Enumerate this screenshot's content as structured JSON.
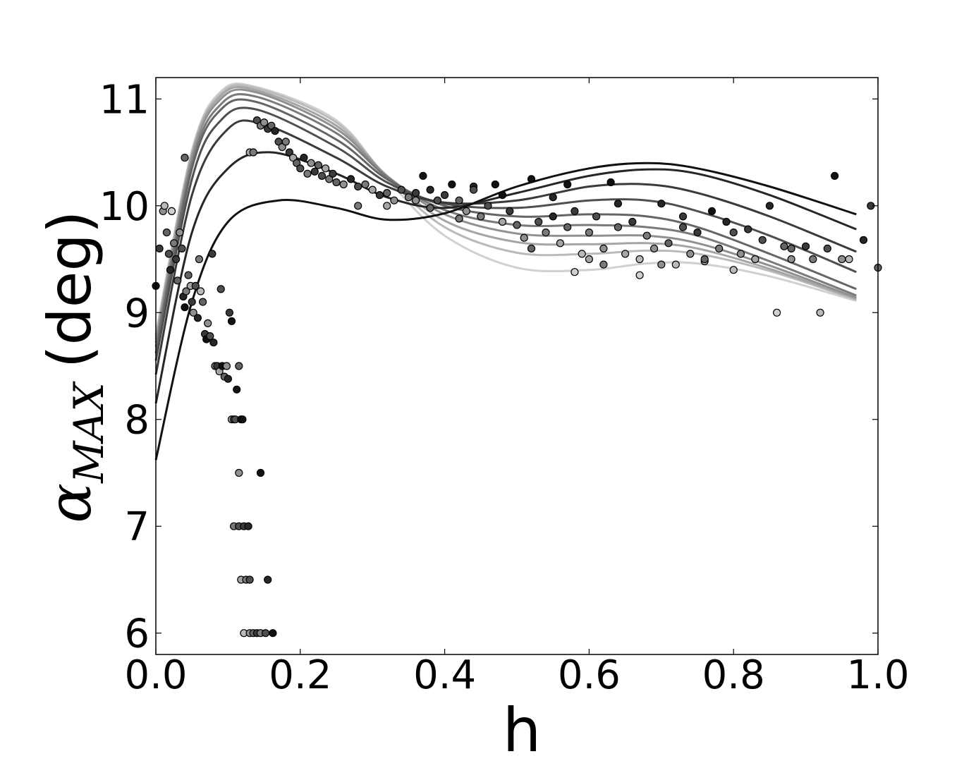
{
  "chart_data": {
    "type": "scatter",
    "title": "",
    "xlabel": "h",
    "ylabel": {
      "symbol": "α",
      "subscript": "MAX",
      "unit": "(deg)"
    },
    "xlim": [
      0.0,
      1.0
    ],
    "ylim": [
      5.8,
      11.2
    ],
    "xticks": [
      "0.0",
      "0.2",
      "0.4",
      "0.6",
      "0.8",
      "1.0"
    ],
    "xtick_values": [
      0.0,
      0.2,
      0.4,
      0.6,
      0.8,
      1.0
    ],
    "yticks": [
      "6",
      "7",
      "8",
      "9",
      "10",
      "11"
    ],
    "ytick_values": [
      6,
      7,
      8,
      9,
      10,
      11
    ],
    "grid": false,
    "legend": "none",
    "colors": [
      "#111111",
      "#262626",
      "#3a3a3a",
      "#4f4f4f",
      "#656565",
      "#7a7a7a",
      "#909090",
      "#a5a5a5",
      "#bababa",
      "#d0d0d0"
    ],
    "curves": [
      {
        "h": [
          0.0,
          0.05,
          0.1,
          0.17,
          0.25,
          0.32,
          0.4,
          0.5,
          0.6,
          0.68,
          0.75,
          0.85,
          0.97
        ],
        "alpha": [
          7.62,
          9.1,
          9.85,
          10.05,
          9.98,
          9.87,
          9.93,
          10.18,
          10.35,
          10.4,
          10.35,
          10.18,
          9.92
        ]
      },
      {
        "h": [
          0.0,
          0.05,
          0.1,
          0.16,
          0.25,
          0.32,
          0.4,
          0.5,
          0.6,
          0.68,
          0.75,
          0.85,
          0.97
        ],
        "alpha": [
          8.15,
          9.75,
          10.35,
          10.5,
          10.3,
          10.08,
          9.98,
          10.12,
          10.28,
          10.34,
          10.3,
          10.1,
          9.78
        ]
      },
      {
        "h": [
          0.0,
          0.05,
          0.1,
          0.15,
          0.25,
          0.32,
          0.4,
          0.5,
          0.6,
          0.68,
          0.75,
          0.85,
          0.97
        ],
        "alpha": [
          8.42,
          10.1,
          10.72,
          10.76,
          10.45,
          10.18,
          10.03,
          10.05,
          10.18,
          10.2,
          10.12,
          9.9,
          9.57
        ]
      },
      {
        "h": [
          0.0,
          0.05,
          0.09,
          0.14,
          0.25,
          0.32,
          0.4,
          0.5,
          0.6,
          0.68,
          0.75,
          0.85,
          0.97
        ],
        "alpha": [
          8.55,
          10.25,
          10.8,
          10.9,
          10.55,
          10.22,
          10.02,
          9.98,
          10.05,
          10.05,
          9.95,
          9.72,
          9.38
        ]
      },
      {
        "h": [
          0.0,
          0.05,
          0.09,
          0.14,
          0.25,
          0.32,
          0.4,
          0.5,
          0.6,
          0.68,
          0.75,
          0.85,
          0.97
        ],
        "alpha": [
          8.62,
          10.35,
          10.9,
          10.97,
          10.62,
          10.25,
          10.0,
          9.9,
          9.92,
          9.9,
          9.8,
          9.55,
          9.22
        ]
      },
      {
        "h": [
          0.0,
          0.05,
          0.09,
          0.14,
          0.25,
          0.32,
          0.4,
          0.5,
          0.6,
          0.68,
          0.75,
          0.85,
          0.97
        ],
        "alpha": [
          8.68,
          10.4,
          10.95,
          11.02,
          10.68,
          10.27,
          9.96,
          9.82,
          9.82,
          9.8,
          9.72,
          9.48,
          9.16
        ]
      },
      {
        "h": [
          0.0,
          0.05,
          0.09,
          0.14,
          0.25,
          0.32,
          0.4,
          0.5,
          0.6,
          0.68,
          0.75,
          0.85,
          0.97
        ],
        "alpha": [
          8.72,
          10.45,
          11.0,
          11.06,
          10.72,
          10.28,
          9.92,
          9.74,
          9.72,
          9.72,
          9.65,
          9.44,
          9.14
        ]
      },
      {
        "h": [
          0.0,
          0.05,
          0.09,
          0.14,
          0.25,
          0.32,
          0.4,
          0.5,
          0.6,
          0.68,
          0.75,
          0.85,
          0.97
        ],
        "alpha": [
          8.75,
          10.48,
          11.03,
          11.08,
          10.75,
          10.28,
          9.86,
          9.66,
          9.64,
          9.65,
          9.6,
          9.41,
          9.13
        ]
      },
      {
        "h": [
          0.0,
          0.05,
          0.09,
          0.14,
          0.25,
          0.32,
          0.4,
          0.5,
          0.6,
          0.68,
          0.75,
          0.85,
          0.97
        ],
        "alpha": [
          8.78,
          10.5,
          11.05,
          11.1,
          10.78,
          10.27,
          9.8,
          9.56,
          9.55,
          9.58,
          9.55,
          9.39,
          9.12
        ]
      },
      {
        "h": [
          0.0,
          0.05,
          0.09,
          0.14,
          0.25,
          0.32,
          0.4,
          0.5,
          0.6,
          0.68,
          0.75,
          0.85,
          0.97
        ],
        "alpha": [
          8.8,
          10.52,
          11.07,
          11.11,
          10.8,
          10.25,
          9.72,
          9.42,
          9.4,
          9.46,
          9.46,
          9.34,
          9.11
        ]
      }
    ],
    "points_gray": [
      [
        0.0,
        9.25,
        0
      ],
      [
        0.005,
        9.6,
        2
      ],
      [
        0.01,
        9.95,
        6
      ],
      [
        0.012,
        10.0,
        8
      ],
      [
        0.015,
        9.75,
        4
      ],
      [
        0.018,
        9.55,
        3
      ],
      [
        0.02,
        9.4,
        1
      ],
      [
        0.022,
        9.95,
        7
      ],
      [
        0.025,
        9.65,
        5
      ],
      [
        0.028,
        9.5,
        2
      ],
      [
        0.03,
        9.3,
        4
      ],
      [
        0.033,
        9.75,
        6
      ],
      [
        0.036,
        9.6,
        3
      ],
      [
        0.038,
        9.15,
        1
      ],
      [
        0.04,
        9.05,
        0
      ],
      [
        0.042,
        9.2,
        5
      ],
      [
        0.045,
        9.35,
        4
      ],
      [
        0.048,
        9.25,
        7
      ],
      [
        0.05,
        9.1,
        2
      ],
      [
        0.052,
        9.0,
        6
      ],
      [
        0.055,
        9.25,
        3
      ],
      [
        0.058,
        8.95,
        1
      ],
      [
        0.06,
        9.5,
        5
      ],
      [
        0.062,
        9.2,
        8
      ],
      [
        0.065,
        9.1,
        4
      ],
      [
        0.068,
        8.8,
        2
      ],
      [
        0.07,
        8.75,
        0
      ],
      [
        0.072,
        8.9,
        6
      ],
      [
        0.075,
        8.78,
        3
      ],
      [
        0.078,
        9.55,
        2
      ],
      [
        0.04,
        10.45,
        4
      ],
      [
        0.022,
        9.95,
        9
      ],
      [
        0.08,
        8.72,
        1
      ],
      [
        0.082,
        8.5,
        5
      ],
      [
        0.085,
        8.5,
        2
      ],
      [
        0.088,
        8.45,
        7
      ],
      [
        0.09,
        9.22,
        3
      ],
      [
        0.092,
        8.5,
        0
      ],
      [
        0.095,
        8.4,
        4
      ],
      [
        0.098,
        8.5,
        6
      ],
      [
        0.1,
        8.38,
        1
      ],
      [
        0.102,
        9.0,
        2
      ],
      [
        0.105,
        8.92,
        0
      ],
      [
        0.105,
        8.0,
        7
      ],
      [
        0.108,
        8.0,
        5
      ],
      [
        0.11,
        8.0,
        3
      ],
      [
        0.112,
        8.28,
        0
      ],
      [
        0.115,
        8.5,
        4
      ],
      [
        0.118,
        8.0,
        1
      ],
      [
        0.12,
        8.0,
        0
      ],
      [
        0.115,
        7.5,
        6
      ],
      [
        0.145,
        7.5,
        0
      ],
      [
        0.108,
        7.0,
        5
      ],
      [
        0.115,
        7.0,
        3
      ],
      [
        0.122,
        7.0,
        2
      ],
      [
        0.128,
        7.0,
        1
      ],
      [
        0.118,
        6.5,
        7
      ],
      [
        0.125,
        6.5,
        5
      ],
      [
        0.13,
        6.5,
        3
      ],
      [
        0.155,
        6.5,
        1
      ],
      [
        0.122,
        6.0,
        8
      ],
      [
        0.13,
        6.0,
        6
      ],
      [
        0.135,
        6.0,
        4
      ],
      [
        0.14,
        6.0,
        2
      ],
      [
        0.145,
        6.0,
        5
      ],
      [
        0.152,
        6.0,
        3
      ],
      [
        0.162,
        6.0,
        0
      ],
      [
        0.13,
        10.5,
        7
      ],
      [
        0.135,
        10.5,
        5
      ],
      [
        0.14,
        10.8,
        3
      ],
      [
        0.145,
        10.75,
        5
      ],
      [
        0.15,
        10.78,
        6
      ],
      [
        0.155,
        10.72,
        2
      ],
      [
        0.16,
        10.75,
        4
      ],
      [
        0.165,
        10.7,
        1
      ],
      [
        0.17,
        10.6,
        3
      ],
      [
        0.175,
        10.55,
        6
      ],
      [
        0.18,
        10.6,
        5
      ],
      [
        0.185,
        10.5,
        2
      ],
      [
        0.19,
        10.45,
        7
      ],
      [
        0.195,
        10.4,
        4
      ],
      [
        0.2,
        10.35,
        3
      ],
      [
        0.205,
        10.45,
        1
      ],
      [
        0.21,
        10.3,
        5
      ],
      [
        0.215,
        10.4,
        6
      ],
      [
        0.22,
        10.32,
        2
      ],
      [
        0.225,
        10.38,
        4
      ],
      [
        0.23,
        10.28,
        3
      ],
      [
        0.235,
        10.35,
        7
      ],
      [
        0.24,
        10.25,
        5
      ],
      [
        0.245,
        10.3,
        2
      ],
      [
        0.25,
        10.22,
        4
      ],
      [
        0.26,
        10.2,
        6
      ],
      [
        0.27,
        10.25,
        1
      ],
      [
        0.28,
        10.18,
        3
      ],
      [
        0.29,
        10.2,
        5
      ],
      [
        0.3,
        10.15,
        7
      ],
      [
        0.31,
        10.1,
        2
      ],
      [
        0.32,
        10.12,
        4
      ],
      [
        0.33,
        10.05,
        6
      ],
      [
        0.34,
        10.15,
        3
      ],
      [
        0.35,
        10.08,
        5
      ],
      [
        0.36,
        10.12,
        2
      ],
      [
        0.37,
        10.28,
        0
      ],
      [
        0.38,
        10.15,
        1
      ],
      [
        0.39,
        10.05,
        3
      ],
      [
        0.4,
        10.1,
        2
      ],
      [
        0.41,
        10.2,
        0
      ],
      [
        0.42,
        10.05,
        4
      ],
      [
        0.43,
        9.95,
        6
      ],
      [
        0.44,
        10.18,
        1
      ],
      [
        0.45,
        9.9,
        5
      ],
      [
        0.46,
        10.0,
        3
      ],
      [
        0.47,
        10.2,
        0
      ],
      [
        0.48,
        9.85,
        7
      ],
      [
        0.49,
        9.95,
        2
      ],
      [
        0.5,
        9.82,
        4
      ],
      [
        0.51,
        9.7,
        6
      ],
      [
        0.52,
        10.25,
        0
      ],
      [
        0.53,
        9.85,
        3
      ],
      [
        0.54,
        9.75,
        5
      ],
      [
        0.55,
        9.9,
        1
      ],
      [
        0.56,
        9.65,
        7
      ],
      [
        0.57,
        9.8,
        4
      ],
      [
        0.58,
        9.95,
        2
      ],
      [
        0.59,
        9.55,
        8
      ],
      [
        0.6,
        9.75,
        5
      ],
      [
        0.61,
        9.9,
        3
      ],
      [
        0.62,
        9.6,
        6
      ],
      [
        0.63,
        10.22,
        0
      ],
      [
        0.64,
        9.8,
        4
      ],
      [
        0.65,
        9.55,
        7
      ],
      [
        0.66,
        9.85,
        2
      ],
      [
        0.67,
        9.5,
        8
      ],
      [
        0.68,
        9.72,
        5
      ],
      [
        0.69,
        9.6,
        6
      ],
      [
        0.7,
        10.02,
        1
      ],
      [
        0.71,
        9.65,
        4
      ],
      [
        0.72,
        9.45,
        8
      ],
      [
        0.73,
        9.8,
        3
      ],
      [
        0.74,
        9.55,
        6
      ],
      [
        0.75,
        9.75,
        2
      ],
      [
        0.76,
        9.48,
        7
      ],
      [
        0.77,
        9.95,
        0
      ],
      [
        0.78,
        9.6,
        5
      ],
      [
        0.79,
        9.85,
        1
      ],
      [
        0.8,
        9.4,
        8
      ],
      [
        0.81,
        9.55,
        6
      ],
      [
        0.82,
        9.78,
        2
      ],
      [
        0.83,
        9.5,
        7
      ],
      [
        0.84,
        9.68,
        3
      ],
      [
        0.85,
        10.0,
        1
      ],
      [
        0.86,
        9.0,
        9
      ],
      [
        0.87,
        9.62,
        4
      ],
      [
        0.88,
        9.5,
        6
      ],
      [
        0.9,
        9.62,
        2
      ],
      [
        0.91,
        9.5,
        5
      ],
      [
        0.92,
        9.0,
        8
      ],
      [
        0.93,
        9.6,
        3
      ],
      [
        0.94,
        10.28,
        0
      ],
      [
        0.95,
        9.5,
        6
      ],
      [
        0.96,
        9.5,
        8
      ],
      [
        0.98,
        9.68,
        1
      ],
      [
        0.99,
        10.0,
        2
      ],
      [
        1.0,
        9.42,
        4
      ],
      [
        0.58,
        9.38,
        9
      ],
      [
        0.67,
        9.35,
        9
      ],
      [
        0.28,
        10.0,
        5
      ],
      [
        0.32,
        10.0,
        7
      ],
      [
        0.36,
        10.05,
        6
      ],
      [
        0.44,
        10.15,
        3
      ],
      [
        0.52,
        9.6,
        4
      ],
      [
        0.6,
        9.5,
        7
      ],
      [
        0.7,
        9.45,
        6
      ],
      [
        0.76,
        9.5,
        4
      ],
      [
        0.62,
        9.45,
        5
      ],
      [
        0.64,
        10.02,
        1
      ],
      [
        0.57,
        10.2,
        0
      ],
      [
        0.73,
        9.9,
        2
      ],
      [
        0.8,
        9.75,
        3
      ],
      [
        0.88,
        9.6,
        4
      ],
      [
        0.55,
        10.08,
        1
      ],
      [
        0.48,
        10.1,
        0
      ],
      [
        0.42,
        9.88,
        5
      ],
      [
        0.38,
        9.98,
        4
      ]
    ]
  }
}
